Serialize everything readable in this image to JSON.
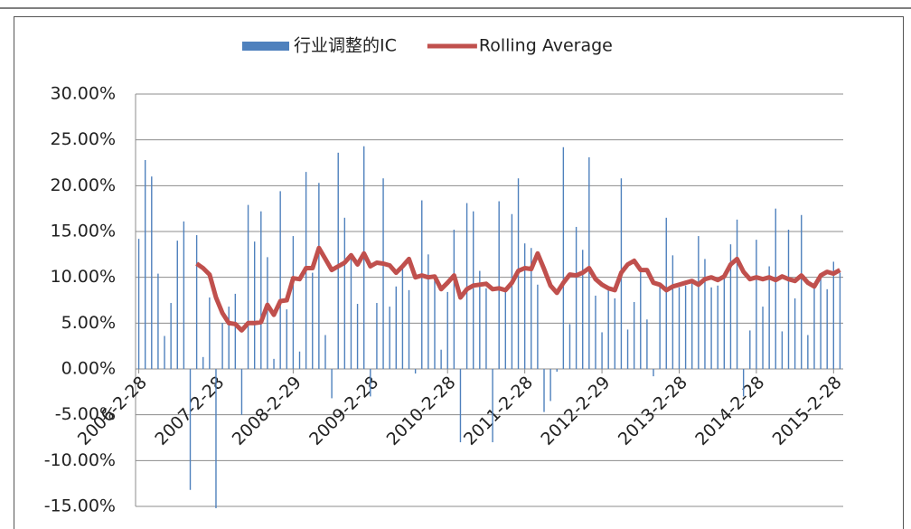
{
  "chart_data": {
    "type": "bar_line",
    "series": [
      {
        "name": "行业调整的IC",
        "color": "#4f81bd",
        "kind": "bar",
        "values": [
          14.2,
          22.8,
          21,
          10.4,
          3.6,
          7.2,
          14,
          16.1,
          -13.2,
          14.6,
          1.3,
          7.8,
          -15.2,
          5,
          6.8,
          8.2,
          -5,
          17.9,
          13.9,
          17.2,
          12.2,
          1.1,
          19.4,
          6.5,
          14.5,
          1.9,
          21.5,
          10.5,
          20.3,
          3.7,
          -3.2,
          23.6,
          16.5,
          12,
          7.1,
          24.3,
          -3,
          7.2,
          20.8,
          6.8,
          9,
          11.5,
          8.6,
          -0.5,
          18.4,
          12.5,
          9.9,
          2.1,
          8.4,
          15.2,
          -8,
          18.1,
          17.2,
          10.7,
          8.8,
          -8,
          18.3,
          8.5,
          16.9,
          20.8,
          13.7,
          13.2,
          9.2,
          -4.7,
          -3.5,
          -0.3,
          24.2,
          4.9,
          15.5,
          13,
          23.1,
          8,
          4,
          9,
          7.7,
          20.8,
          4.3,
          7.3,
          11.2,
          5.4,
          -0.8,
          9.4,
          16.5,
          12.4,
          8.9,
          9.1,
          9.5,
          14.5,
          12,
          8.9,
          9.1,
          10.2,
          13.6,
          16.3,
          -3,
          4.2,
          14.1,
          6.8,
          11.2,
          17.5,
          4.1,
          15.2,
          7.7,
          16.8,
          3.7,
          9.1,
          10.1,
          8.7,
          11.7,
          10.5
        ]
      },
      {
        "name": "Rolling Average",
        "color": "#c0504d",
        "kind": "line",
        "values": [
          null,
          null,
          null,
          null,
          null,
          null,
          null,
          null,
          null,
          11.5,
          11,
          10.3,
          7.8,
          6.1,
          5,
          4.9,
          4.2,
          5,
          5,
          5.1,
          7,
          5.9,
          7.4,
          7.5,
          9.9,
          9.8,
          11,
          11,
          13.2,
          12,
          10.8,
          11.2,
          11.6,
          12.4,
          11.4,
          12.6,
          11.2,
          11.6,
          11.5,
          11.3,
          10.5,
          11.2,
          12,
          10,
          10.2,
          10,
          10.1,
          8.7,
          9.4,
          10.2,
          7.8,
          8.7,
          9.1,
          9.2,
          9.3,
          8.7,
          8.8,
          8.6,
          9.4,
          10.7,
          11,
          10.9,
          12.6,
          10.9,
          9.1,
          8.3,
          9.4,
          10.3,
          10.2,
          10.5,
          11,
          9.8,
          9.2,
          8.8,
          8.6,
          10.5,
          11.4,
          11.8,
          10.8,
          10.8,
          9.4,
          9.2,
          8.6,
          9,
          9.2,
          9.4,
          9.6,
          9.2,
          9.8,
          10,
          9.7,
          10.1,
          11.4,
          12,
          10.6,
          9.8,
          10,
          9.8,
          10,
          9.7,
          10.1,
          9.8,
          9.6,
          10.2,
          9.4,
          9,
          10.2,
          10.6,
          10.4,
          10.8
        ]
      }
    ],
    "categories": [
      "2006-2-28",
      null,
      null,
      null,
      null,
      null,
      null,
      null,
      null,
      null,
      null,
      null,
      "2007-2-28",
      null,
      null,
      null,
      null,
      null,
      null,
      null,
      null,
      null,
      null,
      null,
      "2008-2-29",
      null,
      null,
      null,
      null,
      null,
      null,
      null,
      null,
      null,
      null,
      null,
      "2009-2-28",
      null,
      null,
      null,
      null,
      null,
      null,
      null,
      null,
      null,
      null,
      null,
      "2010-2-28",
      null,
      null,
      null,
      null,
      null,
      null,
      null,
      null,
      null,
      null,
      null,
      "2011-2-28",
      null,
      null,
      null,
      null,
      null,
      null,
      null,
      null,
      null,
      null,
      null,
      "2012-2-29",
      null,
      null,
      null,
      null,
      null,
      null,
      null,
      null,
      null,
      null,
      null,
      "2013-2-28",
      null,
      null,
      null,
      null,
      null,
      null,
      null,
      null,
      null,
      null,
      null,
      "2014-2-28",
      null,
      null,
      null,
      null,
      null,
      null,
      null,
      null,
      null,
      null,
      null,
      "2015-2-28",
      null
    ],
    "ylim": [
      -15,
      30
    ],
    "yticks": [
      {
        "value": -15,
        "label": "-15.00%"
      },
      {
        "value": -10,
        "label": "-10.00%"
      },
      {
        "value": -5,
        "label": "-5.00%"
      },
      {
        "value": 0,
        "label": "0.00%"
      },
      {
        "value": 5,
        "label": "5.00%"
      },
      {
        "value": 10,
        "label": "10.00%"
      },
      {
        "value": 15,
        "label": "15.00%"
      },
      {
        "value": 20,
        "label": "20.00%"
      },
      {
        "value": 25,
        "label": "25.00%"
      },
      {
        "value": 30,
        "label": "30.00%"
      }
    ],
    "grid": true,
    "legend": "top"
  }
}
